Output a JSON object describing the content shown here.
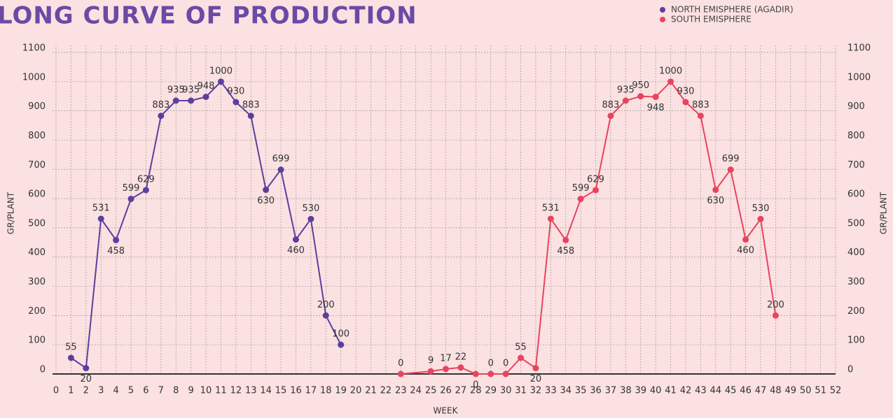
{
  "chart_data": {
    "type": "line",
    "title": "LONG CURVE OF PRODUCTION",
    "xlabel": "WEEK",
    "ylabel": "GR/PLANT",
    "xlim": [
      0,
      52
    ],
    "xticks": [
      0,
      1,
      2,
      3,
      4,
      5,
      6,
      7,
      8,
      9,
      10,
      11,
      12,
      13,
      14,
      15,
      16,
      17,
      18,
      19,
      20,
      21,
      22,
      23,
      24,
      25,
      26,
      27,
      28,
      29,
      30,
      31,
      32,
      33,
      34,
      35,
      36,
      37,
      38,
      39,
      40,
      41,
      42,
      43,
      44,
      45,
      46,
      47,
      48,
      49,
      50,
      51,
      52
    ],
    "ylim": [
      0,
      1100
    ],
    "yticks": [
      0,
      100,
      200,
      300,
      400,
      500,
      600,
      700,
      800,
      900,
      1000,
      1100
    ],
    "grid": true,
    "legend": "top-right",
    "series": [
      {
        "name": "NORTH EMISPHERE (AGADIR)",
        "color": "#5b3f9e",
        "x": [
          1,
          2,
          3,
          4,
          5,
          6,
          7,
          8,
          9,
          10,
          11,
          12,
          13,
          14,
          15,
          16,
          17,
          18,
          19
        ],
        "values": [
          55,
          20,
          531,
          458,
          599,
          629,
          883,
          935,
          935,
          948,
          1000,
          930,
          883,
          630,
          699,
          460,
          530,
          200,
          100
        ]
      },
      {
        "name": "SOUTH EMISPHERE",
        "color": "#e8435f",
        "x": [
          23,
          25,
          26,
          27,
          28,
          29,
          30,
          31,
          32,
          33,
          34,
          35,
          36,
          37,
          38,
          39,
          40,
          41,
          42,
          43,
          44,
          45,
          46,
          47,
          48
        ],
        "values": [
          0,
          9,
          17,
          22,
          0,
          0,
          0,
          55,
          20,
          531,
          458,
          599,
          629,
          883,
          935,
          950,
          948,
          1000,
          930,
          883,
          630,
          699,
          460,
          530,
          200
        ]
      }
    ]
  }
}
